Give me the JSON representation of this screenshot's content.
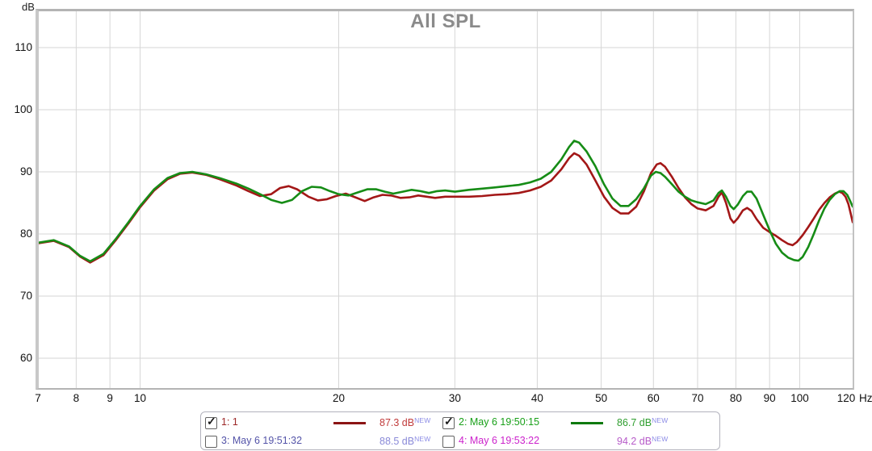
{
  "title": "All SPL",
  "axes": {
    "y_unit": "dB",
    "x_unit": "Hz",
    "y_ticks": [
      110,
      100,
      90,
      80,
      70,
      60
    ],
    "x_ticks": [
      7,
      8,
      9,
      10,
      20,
      30,
      40,
      50,
      60,
      70,
      80,
      90,
      100,
      120
    ],
    "x_gridlines": [
      8,
      9,
      10,
      20,
      30,
      40,
      50,
      60,
      70,
      80,
      90,
      100
    ],
    "x_scale": "log"
  },
  "chart_data": {
    "type": "line",
    "title": "All SPL",
    "xlabel": "Hz",
    "ylabel": "dB",
    "x_scale": "log",
    "xlim": [
      7,
      120.5
    ],
    "ylim": [
      55.2,
      115.8
    ],
    "grid": "on",
    "legend_position": "bottom",
    "series": [
      {
        "name": "1: 1",
        "color": "#a31717",
        "points": [
          [
            7,
            78.5
          ],
          [
            7.4,
            78.9
          ],
          [
            7.8,
            77.9
          ],
          [
            8.1,
            76.4
          ],
          [
            8.4,
            75.4
          ],
          [
            8.8,
            76.6
          ],
          [
            9.2,
            79.1
          ],
          [
            9.6,
            81.7
          ],
          [
            10,
            84.3
          ],
          [
            10.5,
            87.0
          ],
          [
            11,
            88.8
          ],
          [
            11.5,
            89.7
          ],
          [
            12,
            89.9
          ],
          [
            12.6,
            89.5
          ],
          [
            13.2,
            88.8
          ],
          [
            14,
            87.8
          ],
          [
            14.6,
            86.9
          ],
          [
            15.2,
            86.1
          ],
          [
            15.8,
            86.4
          ],
          [
            16.3,
            87.4
          ],
          [
            16.8,
            87.7
          ],
          [
            17.3,
            87.2
          ],
          [
            18,
            86.0
          ],
          [
            18.6,
            85.4
          ],
          [
            19.2,
            85.6
          ],
          [
            19.8,
            86.1
          ],
          [
            20.5,
            86.5
          ],
          [
            21.2,
            85.9
          ],
          [
            21.9,
            85.3
          ],
          [
            22.6,
            85.9
          ],
          [
            23.3,
            86.3
          ],
          [
            24,
            86.2
          ],
          [
            24.8,
            85.8
          ],
          [
            25.6,
            85.9
          ],
          [
            26.4,
            86.2
          ],
          [
            27.2,
            86.0
          ],
          [
            28,
            85.8
          ],
          [
            29,
            86.0
          ],
          [
            30,
            86.0
          ],
          [
            31.5,
            86.0
          ],
          [
            33,
            86.1
          ],
          [
            34.5,
            86.3
          ],
          [
            36,
            86.4
          ],
          [
            37.5,
            86.6
          ],
          [
            39,
            87.0
          ],
          [
            40.5,
            87.6
          ],
          [
            42,
            88.6
          ],
          [
            43.5,
            90.4
          ],
          [
            44.7,
            92.2
          ],
          [
            45.5,
            93.0
          ],
          [
            46.3,
            92.6
          ],
          [
            47.5,
            91.2
          ],
          [
            49,
            88.6
          ],
          [
            50.5,
            86.0
          ],
          [
            52,
            84.2
          ],
          [
            53.5,
            83.3
          ],
          [
            55,
            83.3
          ],
          [
            56.5,
            84.4
          ],
          [
            58,
            86.8
          ],
          [
            59.5,
            89.8
          ],
          [
            60.7,
            91.2
          ],
          [
            61.5,
            91.4
          ],
          [
            62.5,
            90.8
          ],
          [
            64,
            89.2
          ],
          [
            65.5,
            87.4
          ],
          [
            67,
            85.9
          ],
          [
            68.5,
            84.8
          ],
          [
            70,
            84.1
          ],
          [
            72,
            83.8
          ],
          [
            74,
            84.5
          ],
          [
            75.3,
            86.0
          ],
          [
            76.2,
            86.7
          ],
          [
            77.3,
            85.0
          ],
          [
            78.5,
            82.5
          ],
          [
            79.4,
            81.8
          ],
          [
            80.5,
            82.5
          ],
          [
            82,
            83.8
          ],
          [
            83.2,
            84.2
          ],
          [
            84.5,
            83.7
          ],
          [
            86,
            82.4
          ],
          [
            88,
            81.0
          ],
          [
            90,
            80.3
          ],
          [
            92,
            79.7
          ],
          [
            94,
            79.0
          ],
          [
            96,
            78.4
          ],
          [
            97.5,
            78.2
          ],
          [
            99,
            78.7
          ],
          [
            101,
            79.8
          ],
          [
            103,
            81.1
          ],
          [
            105,
            82.5
          ],
          [
            107,
            83.9
          ],
          [
            109,
            85.0
          ],
          [
            111,
            85.9
          ],
          [
            113,
            86.5
          ],
          [
            114.7,
            86.8
          ],
          [
            116,
            86.6
          ],
          [
            117.3,
            86.0
          ],
          [
            118.5,
            84.8
          ],
          [
            119.5,
            83.2
          ],
          [
            120.3,
            81.9
          ]
        ]
      },
      {
        "name": "2: May 6 19:50:15",
        "color": "#168c16",
        "points": [
          [
            7,
            78.6
          ],
          [
            7.4,
            79.0
          ],
          [
            7.8,
            78.0
          ],
          [
            8.1,
            76.5
          ],
          [
            8.4,
            75.6
          ],
          [
            8.8,
            76.8
          ],
          [
            9.2,
            79.3
          ],
          [
            9.6,
            81.9
          ],
          [
            10,
            84.5
          ],
          [
            10.5,
            87.2
          ],
          [
            11,
            89.0
          ],
          [
            11.5,
            89.8
          ],
          [
            12,
            90.0
          ],
          [
            12.6,
            89.6
          ],
          [
            13.2,
            89.0
          ],
          [
            14,
            88.1
          ],
          [
            14.6,
            87.3
          ],
          [
            15.2,
            86.4
          ],
          [
            15.8,
            85.5
          ],
          [
            16.4,
            85.0
          ],
          [
            17,
            85.5
          ],
          [
            17.6,
            86.9
          ],
          [
            18.2,
            87.6
          ],
          [
            18.8,
            87.5
          ],
          [
            19.4,
            86.9
          ],
          [
            20,
            86.4
          ],
          [
            20.7,
            86.2
          ],
          [
            21.4,
            86.7
          ],
          [
            22.1,
            87.2
          ],
          [
            22.8,
            87.2
          ],
          [
            23.5,
            86.8
          ],
          [
            24.2,
            86.5
          ],
          [
            25,
            86.8
          ],
          [
            25.8,
            87.1
          ],
          [
            26.6,
            86.9
          ],
          [
            27.4,
            86.6
          ],
          [
            28.2,
            86.9
          ],
          [
            29,
            87.0
          ],
          [
            30,
            86.8
          ],
          [
            31.5,
            87.1
          ],
          [
            33,
            87.3
          ],
          [
            34.5,
            87.5
          ],
          [
            36,
            87.7
          ],
          [
            37.5,
            87.9
          ],
          [
            39,
            88.3
          ],
          [
            40.5,
            88.9
          ],
          [
            42,
            90.0
          ],
          [
            43.5,
            92.0
          ],
          [
            44.7,
            94.0
          ],
          [
            45.5,
            95.0
          ],
          [
            46.3,
            94.7
          ],
          [
            47.5,
            93.3
          ],
          [
            49,
            90.9
          ],
          [
            50.5,
            88.0
          ],
          [
            52,
            85.7
          ],
          [
            53.5,
            84.5
          ],
          [
            55,
            84.5
          ],
          [
            56.5,
            85.6
          ],
          [
            58,
            87.3
          ],
          [
            59.5,
            89.4
          ],
          [
            60.5,
            90.0
          ],
          [
            61.5,
            89.8
          ],
          [
            62.5,
            89.2
          ],
          [
            64,
            88.0
          ],
          [
            65.5,
            86.8
          ],
          [
            67,
            86.0
          ],
          [
            68.5,
            85.4
          ],
          [
            70,
            85.1
          ],
          [
            72,
            84.8
          ],
          [
            74,
            85.4
          ],
          [
            75.3,
            86.6
          ],
          [
            76.2,
            87.0
          ],
          [
            77.3,
            86.0
          ],
          [
            78.5,
            84.5
          ],
          [
            79.4,
            84.0
          ],
          [
            80.5,
            84.7
          ],
          [
            82,
            86.1
          ],
          [
            83.2,
            86.8
          ],
          [
            84.5,
            86.8
          ],
          [
            86,
            85.7
          ],
          [
            88,
            83.1
          ],
          [
            90,
            80.6
          ],
          [
            92,
            78.4
          ],
          [
            94,
            77.0
          ],
          [
            96,
            76.2
          ],
          [
            98,
            75.8
          ],
          [
            99.5,
            75.7
          ],
          [
            101,
            76.3
          ],
          [
            103,
            77.9
          ],
          [
            105,
            80.0
          ],
          [
            107,
            82.2
          ],
          [
            109,
            84.1
          ],
          [
            111,
            85.5
          ],
          [
            113,
            86.4
          ],
          [
            115,
            86.9
          ],
          [
            116.5,
            86.9
          ],
          [
            118,
            86.3
          ],
          [
            119,
            85.5
          ],
          [
            120.3,
            84.4
          ]
        ]
      }
    ]
  },
  "legend": {
    "badge_label": "NEW",
    "badge_color": "#8c8ce6",
    "entries": [
      {
        "checked": true,
        "name": "1: 1",
        "value": "87.3 dB",
        "name_color": "#9c2626",
        "value_color": "#c13b3b",
        "swatch_color": "#8b1414",
        "has_swatch": true
      },
      {
        "checked": true,
        "name": "2: May 6 19:50:15",
        "value": "86.7 dB",
        "name_color": "#18a018",
        "value_color": "#2f9e2f",
        "swatch_color": "#0e7a0e",
        "has_swatch": true
      },
      {
        "checked": false,
        "name": "3: May 6 19:51:32",
        "value": "88.5 dB",
        "name_color": "#5353a8",
        "value_color": "#8a8ad8",
        "swatch_color": null,
        "has_swatch": false
      },
      {
        "checked": false,
        "name": "4: May 6 19:53:22",
        "value": "94.2 dB",
        "name_color": "#cc22cc",
        "value_color": "#b75bc9",
        "swatch_color": null,
        "has_swatch": false
      }
    ]
  },
  "colors": {
    "title": "#8a8a8a",
    "grid_line": "#d6d6d6",
    "plot_border": "#b4b4b4",
    "axis_text": "#111111",
    "background": "#ffffff"
  }
}
